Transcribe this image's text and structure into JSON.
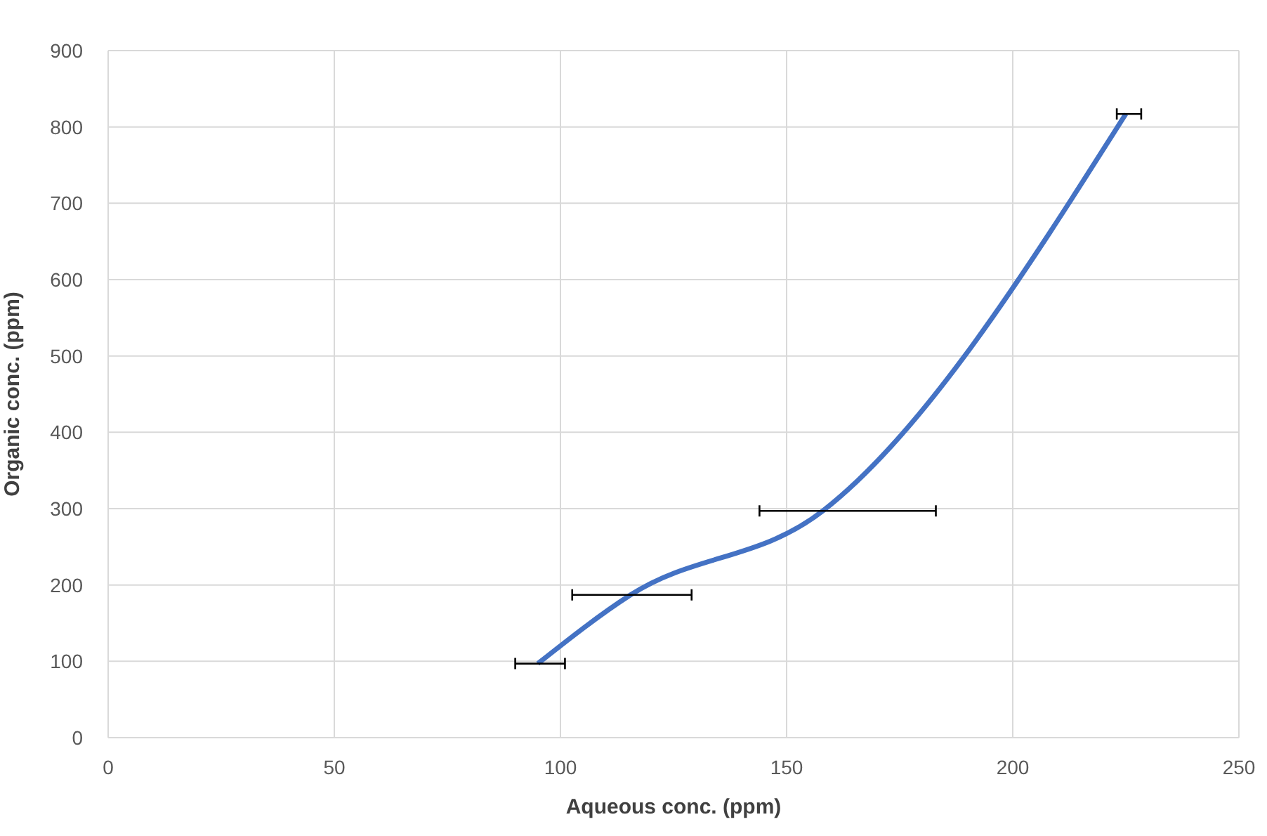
{
  "chart_data": {
    "type": "line",
    "xlabel": "Aqueous conc. (ppm)",
    "ylabel": "Organic conc. (ppm)",
    "x": [
      95,
      115.5,
      158,
      225
    ],
    "series": [
      {
        "color": "#4472c4",
        "values": [
          97,
          187,
          297,
          817
        ],
        "xerrors": [
          [
            90,
            101
          ],
          [
            102.6,
            129
          ],
          [
            144,
            183
          ],
          [
            223,
            228.4
          ]
        ]
      }
    ],
    "xlim": [
      0,
      250
    ],
    "xticks": [
      0,
      50,
      100,
      150,
      200,
      250
    ],
    "ylim": [
      0,
      900
    ],
    "yticks": [
      0,
      100,
      200,
      300,
      400,
      500,
      600,
      700,
      800,
      900
    ],
    "grid": true,
    "legend": false,
    "marker": "none",
    "line_style": "solid"
  }
}
